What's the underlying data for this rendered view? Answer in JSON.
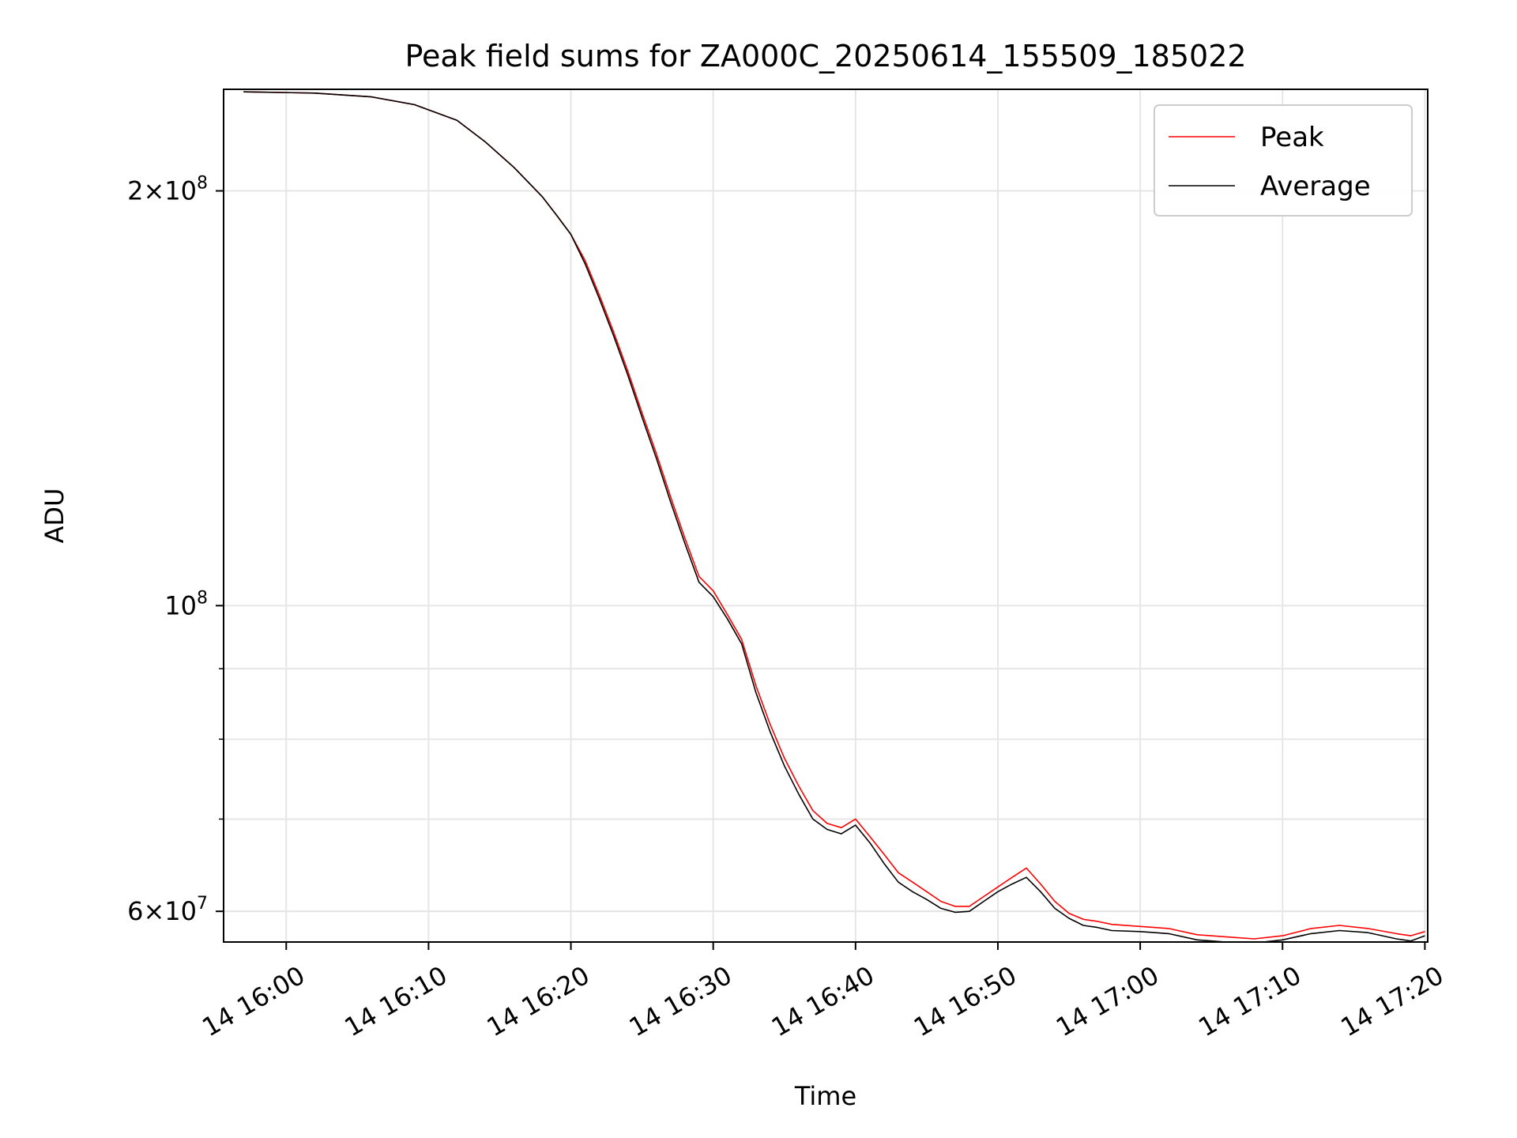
{
  "chart_data": {
    "type": "line",
    "title": "Peak field sums for ZA000C_20250614_155509_185022",
    "xlabel": "Time",
    "ylabel": "ADU",
    "y_scale": "log",
    "xlim": [
      "2025-06-14 15:55:36",
      "2025-06-14 17:20:12"
    ],
    "ylim": [
      57000000,
      237000000
    ],
    "x_ticks": [
      {
        "time": "2025-06-14 16:00",
        "label": "14 16:00"
      },
      {
        "time": "2025-06-14 16:10",
        "label": "14 16:10"
      },
      {
        "time": "2025-06-14 16:20",
        "label": "14 16:20"
      },
      {
        "time": "2025-06-14 16:30",
        "label": "14 16:30"
      },
      {
        "time": "2025-06-14 16:40",
        "label": "14 16:40"
      },
      {
        "time": "2025-06-14 16:50",
        "label": "14 16:50"
      },
      {
        "time": "2025-06-14 17:00",
        "label": "14 17:00"
      },
      {
        "time": "2025-06-14 17:10",
        "label": "14 17:10"
      },
      {
        "time": "2025-06-14 17:20",
        "label": "14 17:20"
      }
    ],
    "y_major_ticks": [
      {
        "value": 60000000,
        "base": "6×10",
        "exp": "7"
      },
      {
        "value": 100000000,
        "base": "10",
        "exp": "8"
      },
      {
        "value": 200000000,
        "base": "2×10",
        "exp": "8"
      }
    ],
    "y_minor_ticks": [
      60000000,
      70000000,
      80000000,
      90000000,
      200000000
    ],
    "grid": true,
    "legend_position": "top-right",
    "x": [
      "2025-06-14 15:57",
      "2025-06-14 16:02",
      "2025-06-14 16:06",
      "2025-06-14 16:09",
      "2025-06-14 16:12",
      "2025-06-14 16:14",
      "2025-06-14 16:16",
      "2025-06-14 16:18",
      "2025-06-14 16:19",
      "2025-06-14 16:20",
      "2025-06-14 16:21",
      "2025-06-14 16:22",
      "2025-06-14 16:23",
      "2025-06-14 16:24",
      "2025-06-14 16:25",
      "2025-06-14 16:26",
      "2025-06-14 16:27",
      "2025-06-14 16:28",
      "2025-06-14 16:29",
      "2025-06-14 16:30",
      "2025-06-14 16:31",
      "2025-06-14 16:32",
      "2025-06-14 16:33",
      "2025-06-14 16:34",
      "2025-06-14 16:35",
      "2025-06-14 16:36",
      "2025-06-14 16:37",
      "2025-06-14 16:38",
      "2025-06-14 16:39",
      "2025-06-14 16:40",
      "2025-06-14 16:41",
      "2025-06-14 16:42",
      "2025-06-14 16:43",
      "2025-06-14 16:44",
      "2025-06-14 16:45",
      "2025-06-14 16:46",
      "2025-06-14 16:47",
      "2025-06-14 16:48",
      "2025-06-14 16:49",
      "2025-06-14 16:50",
      "2025-06-14 16:51",
      "2025-06-14 16:52",
      "2025-06-14 16:53",
      "2025-06-14 16:54",
      "2025-06-14 16:55",
      "2025-06-14 16:56",
      "2025-06-14 16:57",
      "2025-06-14 16:58",
      "2025-06-14 17:00",
      "2025-06-14 17:01",
      "2025-06-14 17:02",
      "2025-06-14 17:04",
      "2025-06-14 17:06",
      "2025-06-14 17:08",
      "2025-06-14 17:10",
      "2025-06-14 17:12",
      "2025-06-14 17:14",
      "2025-06-14 17:16",
      "2025-06-14 17:18",
      "2025-06-14 17:19",
      "2025-06-14 17:20"
    ],
    "series": [
      {
        "name": "Peak",
        "color": "#ff0000",
        "values": [
          236000000,
          235500000,
          234000000,
          231000000,
          225000000,
          217000000,
          208000000,
          198000000,
          192000000,
          186000000,
          178000000,
          168000000,
          158000000,
          148000000,
          138000000,
          129000000,
          120000000,
          112000000,
          105000000,
          102500000,
          98500000,
          94500000,
          87500000,
          82000000,
          77500000,
          74000000,
          71000000,
          69500000,
          69000000,
          70000000,
          68000000,
          66000000,
          64000000,
          63000000,
          62000000,
          61000000,
          60500000,
          60500000,
          61500000,
          62500000,
          63500000,
          64500000,
          62800000,
          61000000,
          59800000,
          59200000,
          59000000,
          58700000,
          58500000,
          58400000,
          58300000,
          57700000,
          57500000,
          57300000,
          57600000,
          58300000,
          58600000,
          58300000,
          57800000,
          57600000,
          58000000
        ]
      },
      {
        "name": "Average",
        "color": "#000000",
        "values": [
          236000000,
          235500000,
          234000000,
          231000000,
          225000000,
          217000000,
          208000000,
          198000000,
          192000000,
          186000000,
          177000000,
          167000000,
          157000000,
          147000000,
          137000000,
          128000000,
          119000000,
          111000000,
          104000000,
          101500000,
          97800000,
          93800000,
          86500000,
          81000000,
          76500000,
          73000000,
          70000000,
          68800000,
          68300000,
          69300000,
          67300000,
          65000000,
          63000000,
          62000000,
          61200000,
          60300000,
          59900000,
          60000000,
          61000000,
          62000000,
          62800000,
          63500000,
          62000000,
          60300000,
          59300000,
          58600000,
          58400000,
          58100000,
          58000000,
          57900000,
          57800000,
          57200000,
          57000000,
          56900000,
          57200000,
          57800000,
          58100000,
          57900000,
          57300000,
          57100000,
          57600000
        ]
      }
    ]
  }
}
